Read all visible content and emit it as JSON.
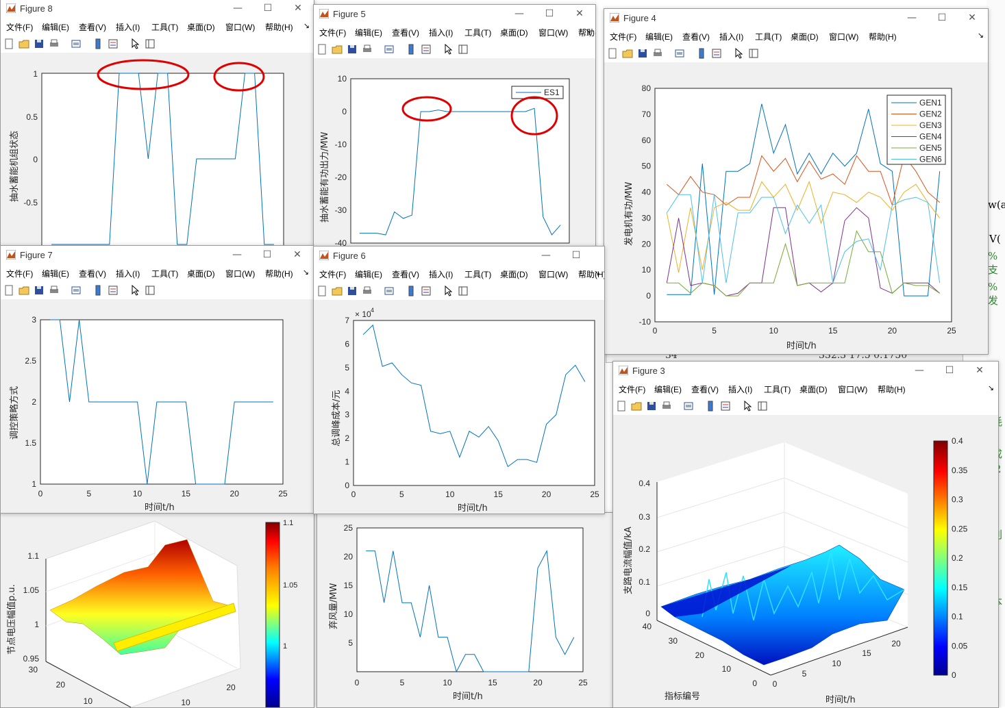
{
  "menu": [
    "文件(F)",
    "编辑(E)",
    "查看(V)",
    "插入(I)",
    "工具(T)",
    "桌面(D)",
    "窗口(W)",
    "帮助(H)"
  ],
  "colors": {
    "line": "#0072BD",
    "circle": "#e00000",
    "gen": [
      "#0072BD",
      "#D95319",
      "#EDB120",
      "#7E2F8E",
      "#77AC30",
      "#4DBEEE"
    ]
  },
  "figure8": {
    "title": "Figure 8",
    "ylabel": "抽水蓄能机组状态",
    "yticks": [
      "1",
      "0.5",
      "0",
      "-0.5"
    ]
  },
  "figure5": {
    "title": "Figure 5",
    "ylabel": "抽水蓄能有功出力/MW",
    "yticks": [
      "10",
      "0",
      "-10",
      "-20",
      "-30",
      "-40"
    ],
    "legend": "ES1"
  },
  "figure4": {
    "title": "Figure 4",
    "ylabel": "发电机有功/MW",
    "xlabel": "时间t/h",
    "yticks": [
      "80",
      "70",
      "60",
      "50",
      "40",
      "30",
      "20",
      "10",
      "0",
      "-10"
    ],
    "xticks": [
      "0",
      "5",
      "10",
      "15",
      "20",
      "25"
    ],
    "legend": [
      "GEN1",
      "GEN2",
      "GEN3",
      "GEN4",
      "GEN5",
      "GEN6"
    ]
  },
  "figure7": {
    "title": "Figure 7",
    "ylabel": "调控策略方式",
    "xlabel": "时间t/h",
    "yticks": [
      "3",
      "2.5",
      "2",
      "1.5",
      "1"
    ],
    "xticks": [
      "0",
      "5",
      "10",
      "15",
      "20",
      "25"
    ]
  },
  "figure6": {
    "title": "Figure 6",
    "ylabel": "总调峰成本/元",
    "xlabel": "时间t/h",
    "exponent": "× 10",
    "exponent_power": "4",
    "yticks": [
      "7",
      "6",
      "5",
      "4",
      "3",
      "2",
      "1",
      "0"
    ],
    "xticks": [
      "0",
      "5",
      "10",
      "15",
      "20",
      "25"
    ]
  },
  "figure3": {
    "title": "Figure 3",
    "zlabel": "支路电流幅值/kA",
    "xlabel": "时间t/h",
    "ylabel": "指标编号",
    "zticks": [
      "0.4",
      "0.3",
      "0.2",
      "0.1",
      "0"
    ],
    "xticks": [
      "5",
      "10",
      "15",
      "20"
    ],
    "yticks": [
      "40",
      "30",
      "20",
      "10",
      "0"
    ],
    "yticks2": [
      "0"
    ],
    "colorbar": [
      "0.4",
      "0.35",
      "0.3",
      "0.25",
      "0.2",
      "0.15",
      "0.1",
      "0.05",
      "0"
    ]
  },
  "volt3d": {
    "zlabel": "节点电压幅值p.u.",
    "zticks": [
      "1.1",
      "1.05",
      "1",
      "0.95"
    ],
    "yticks": [
      "30",
      "20",
      "10"
    ],
    "xticks": [
      "20",
      "10"
    ],
    "colorbar": [
      "1.1",
      "1.05",
      "1"
    ]
  },
  "wind": {
    "ylabel": "弃风量/MW",
    "xlabel": "时间t/h",
    "yticks": [
      "25",
      "20",
      "15",
      "10",
      "5"
    ],
    "xticks": [
      "0",
      "5",
      "10",
      "15",
      "20",
      "25"
    ]
  },
  "background": {
    "doc_fragments": [
      "w(a",
      "V(",
      "%支",
      "%发",
      "耗",
      "成",
      "2",
      "o",
      "削",
      "本"
    ],
    "strip": "34",
    "strip2": "332.3 17.5 0.1750"
  },
  "chart_data": [
    {
      "type": "line",
      "title": "",
      "ylabel": "抽水蓄能机组状态",
      "x": [
        1,
        2,
        3,
        4,
        5,
        6,
        7,
        8,
        9,
        10,
        11,
        12,
        13,
        14,
        15,
        16,
        17,
        18,
        19,
        20,
        21,
        22,
        23,
        24
      ],
      "ylim": [
        -1,
        1
      ],
      "series": [
        {
          "name": "",
          "values": [
            -1,
            -1,
            -1,
            -1,
            -1,
            -1,
            -1,
            1,
            1,
            1,
            0,
            1,
            1,
            -1,
            -1,
            0,
            0,
            0,
            0,
            0,
            1,
            1,
            -1,
            -1
          ]
        }
      ]
    },
    {
      "type": "line",
      "title": "",
      "ylabel": "抽水蓄能有功出力/MW",
      "x": [
        1,
        2,
        3,
        4,
        5,
        6,
        7,
        8,
        9,
        10,
        11,
        12,
        13,
        14,
        15,
        16,
        17,
        18,
        19,
        20,
        21,
        22,
        23,
        24
      ],
      "ylim": [
        -40,
        10
      ],
      "series": [
        {
          "name": "ES1",
          "values": [
            -37,
            -37,
            -37,
            -37.5,
            -30.5,
            -32.5,
            -31.5,
            0,
            0,
            0.5,
            0,
            0,
            0,
            0,
            0,
            0,
            0,
            0,
            0,
            0,
            1,
            -32,
            -37.5,
            -34.5
          ]
        }
      ]
    },
    {
      "type": "line",
      "title": "",
      "ylabel": "发电机有功/MW",
      "xlabel": "时间t/h",
      "ylim": [
        -10,
        80
      ],
      "x": [
        1,
        2,
        3,
        4,
        5,
        6,
        7,
        8,
        9,
        10,
        11,
        12,
        13,
        14,
        15,
        16,
        17,
        18,
        19,
        20,
        21,
        22,
        23,
        24
      ],
      "series": [
        {
          "name": "GEN1",
          "values": [
            0.5,
            0.5,
            0.5,
            51,
            0.5,
            48,
            48,
            51,
            74,
            55,
            66,
            47,
            55,
            47,
            55,
            50,
            55,
            72,
            51,
            48,
            0,
            0,
            0,
            48
          ]
        },
        {
          "name": "GEN2",
          "values": [
            43,
            39,
            46,
            40,
            39,
            35,
            38,
            38,
            54,
            48,
            53,
            44,
            52,
            45,
            47,
            43,
            54,
            48,
            48,
            35,
            54,
            48,
            40,
            36
          ]
        },
        {
          "name": "GEN3",
          "values": [
            32,
            9,
            34,
            10,
            34,
            36,
            33,
            33,
            44,
            38,
            43,
            33,
            44,
            28,
            40,
            39,
            36,
            40,
            38,
            33,
            40,
            43,
            36,
            30
          ]
        },
        {
          "name": "GEN4",
          "values": [
            5,
            30,
            4,
            5,
            4,
            0,
            1,
            5,
            5,
            34,
            34,
            4,
            5,
            1.5,
            5,
            29,
            34,
            30,
            3,
            1,
            5,
            5,
            5,
            1
          ]
        },
        {
          "name": "GEN5",
          "values": [
            5,
            5,
            1,
            5,
            4,
            0,
            0,
            5,
            5,
            5,
            20,
            4,
            5,
            5,
            5,
            5,
            25,
            17,
            17,
            1,
            5,
            4,
            4,
            1
          ]
        },
        {
          "name": "GEN6",
          "values": [
            32,
            39,
            39,
            5,
            39,
            5,
            32,
            32,
            38,
            38,
            24,
            35,
            28,
            35,
            5,
            17,
            21,
            22,
            10,
            35,
            37,
            38,
            36,
            5
          ]
        }
      ]
    },
    {
      "type": "line",
      "title": "",
      "ylabel": "调控策略方式",
      "xlabel": "时间t/h",
      "ylim": [
        1,
        3
      ],
      "x": [
        1,
        2,
        3,
        4,
        5,
        6,
        7,
        8,
        9,
        10,
        11,
        12,
        13,
        14,
        15,
        16,
        17,
        18,
        19,
        20,
        21,
        22,
        23,
        24
      ],
      "series": [
        {
          "name": "",
          "values": [
            3,
            3,
            2,
            3,
            2,
            2,
            2,
            2,
            2,
            2,
            1,
            2,
            2,
            2,
            2,
            1,
            1,
            1,
            1,
            2,
            2,
            2,
            2,
            2
          ]
        }
      ]
    },
    {
      "type": "line",
      "title": "",
      "ylabel": "总调峰成本/元",
      "xlabel": "时间t/h",
      "ylim": [
        0,
        7
      ],
      "x": [
        1,
        2,
        3,
        4,
        5,
        6,
        7,
        8,
        9,
        10,
        11,
        12,
        13,
        14,
        15,
        16,
        17,
        18,
        19,
        20,
        21,
        22,
        23,
        24
      ],
      "series": [
        {
          "name": "",
          "values": [
            6.4,
            6.8,
            5.05,
            5.2,
            4.7,
            4.35,
            4.25,
            2.3,
            2.2,
            2.3,
            1.2,
            2.3,
            2.05,
            2.5,
            1.9,
            0.8,
            1.1,
            1.1,
            0.98,
            2.6,
            3,
            4.7,
            5.1,
            4.4
          ]
        }
      ]
    },
    {
      "type": "line",
      "title": "",
      "ylabel": "弃风量/MW",
      "xlabel": "时间t/h",
      "ylim": [
        0,
        25
      ],
      "x": [
        1,
        2,
        3,
        4,
        5,
        6,
        7,
        8,
        9,
        10,
        11,
        12,
        13,
        14,
        15,
        16,
        17,
        18,
        19,
        20,
        21,
        22,
        23,
        24
      ],
      "series": [
        {
          "name": "",
          "values": [
            21,
            21,
            12,
            21,
            12,
            12,
            6,
            15,
            6,
            6,
            0,
            3,
            3,
            0,
            0,
            0,
            0,
            0,
            0,
            18,
            21,
            6,
            3,
            6
          ]
        }
      ]
    }
  ]
}
